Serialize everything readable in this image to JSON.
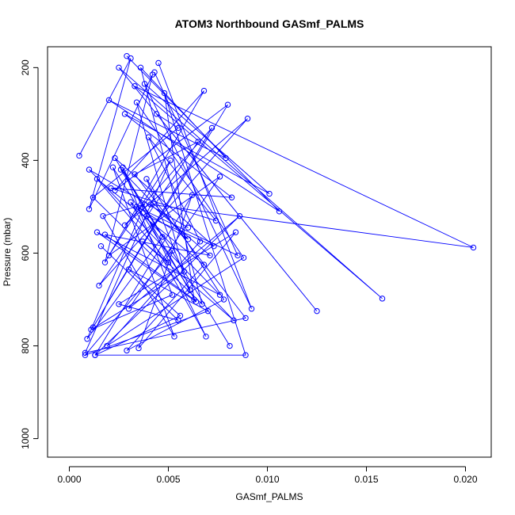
{
  "chart_data": {
    "type": "line",
    "title": "ATOM3 Northbound GASmf_PALMS",
    "xlabel": "GASmf_PALMS",
    "ylabel": "Pressure (mbar)",
    "xlim": [
      -0.0011,
      0.0213
    ],
    "ylim": [
      1040,
      155
    ],
    "y_reversed": true,
    "x_ticks": [
      {
        "value": 0.0,
        "label": "0.000"
      },
      {
        "value": 0.005,
        "label": "0.005"
      },
      {
        "value": 0.01,
        "label": "0.010"
      },
      {
        "value": 0.015,
        "label": "0.015"
      },
      {
        "value": 0.02,
        "label": "0.020"
      }
    ],
    "y_ticks": [
      {
        "value": 200,
        "label": "200"
      },
      {
        "value": 400,
        "label": "400"
      },
      {
        "value": 600,
        "label": "600"
      },
      {
        "value": 800,
        "label": "800"
      },
      {
        "value": 1000,
        "label": "1000"
      }
    ],
    "grid": false,
    "legend": "none",
    "line_color": "#0000ff",
    "series": [
      {
        "x": [
          0.0005,
          0.0031,
          0.001,
          0.0042,
          0.0018,
          0.0068,
          0.0023,
          0.008,
          0.0012,
          0.0072,
          0.0028,
          0.009,
          0.0015,
          0.0065,
          0.0033,
          0.0089,
          0.0008,
          0.0051,
          0.002,
          0.0076,
          0.003,
          0.0086,
          0.0013,
          0.0062,
          0.0035,
          0.0084,
          0.0025,
          0.0055,
          0.0016
        ],
        "y": [
          390,
          180,
          505,
          215,
          620,
          250,
          465,
          280,
          760,
          330,
          540,
          310,
          670,
          360,
          430,
          740,
          815,
          400,
          605,
          435,
          720,
          520,
          820,
          475,
          805,
          555,
          710,
          745,
          585
        ]
      },
      {
        "x": [
          0.0045,
          0.0092,
          0.0038,
          0.0101,
          0.0028,
          0.0082,
          0.0021,
          0.0074,
          0.004,
          0.0066,
          0.0019,
          0.0088,
          0.0034,
          0.0058,
          0.0011,
          0.0052,
          0.0027,
          0.0069,
          0.0031,
          0.0076,
          0.0014,
          0.0064,
          0.0039,
          0.0073,
          0.0023,
          0.0081
        ],
        "y": [
          190,
          720,
          235,
          472,
          300,
          480,
          460,
          530,
          350,
          575,
          800,
          610,
          275,
          640,
          765,
          690,
          415,
          780,
          490,
          690,
          555,
          705,
          520,
          585,
          395,
          800
        ]
      },
      {
        "x": [
          0.0029,
          0.0106,
          0.002,
          0.0079,
          0.0036,
          0.0067,
          0.0012,
          0.0055,
          0.0044,
          0.0125,
          0.0025,
          0.0158,
          0.0033,
          0.0204,
          0.0041,
          0.0071,
          0.0018,
          0.0063,
          0.0048,
          0.0089,
          0.0013,
          0.0056,
          0.003,
          0.007,
          0.0008,
          0.0052
        ],
        "y": [
          175,
          510,
          270,
          395,
          200,
          710,
          480,
          330,
          300,
          725,
          200,
          698,
          240,
          588,
          495,
          605,
          560,
          700,
          255,
          820,
          820,
          735,
          635,
          725,
          820,
          595
        ]
      },
      {
        "x": [
          0.0043,
          0.0085,
          0.0034,
          0.006,
          0.0026,
          0.0047,
          0.0009,
          0.0038,
          0.0017,
          0.0053,
          0.0022,
          0.0061,
          0.0039,
          0.0078,
          0.0029,
          0.0068,
          0.0014,
          0.005,
          0.0037,
          0.0083,
          0.001,
          0.006
        ],
        "y": [
          210,
          605,
          500,
          570,
          420,
          565,
          785,
          495,
          520,
          780,
          415,
          680,
          440,
          700,
          810,
          625,
          440,
          620,
          575,
          745,
          420,
          545
        ]
      }
    ]
  }
}
